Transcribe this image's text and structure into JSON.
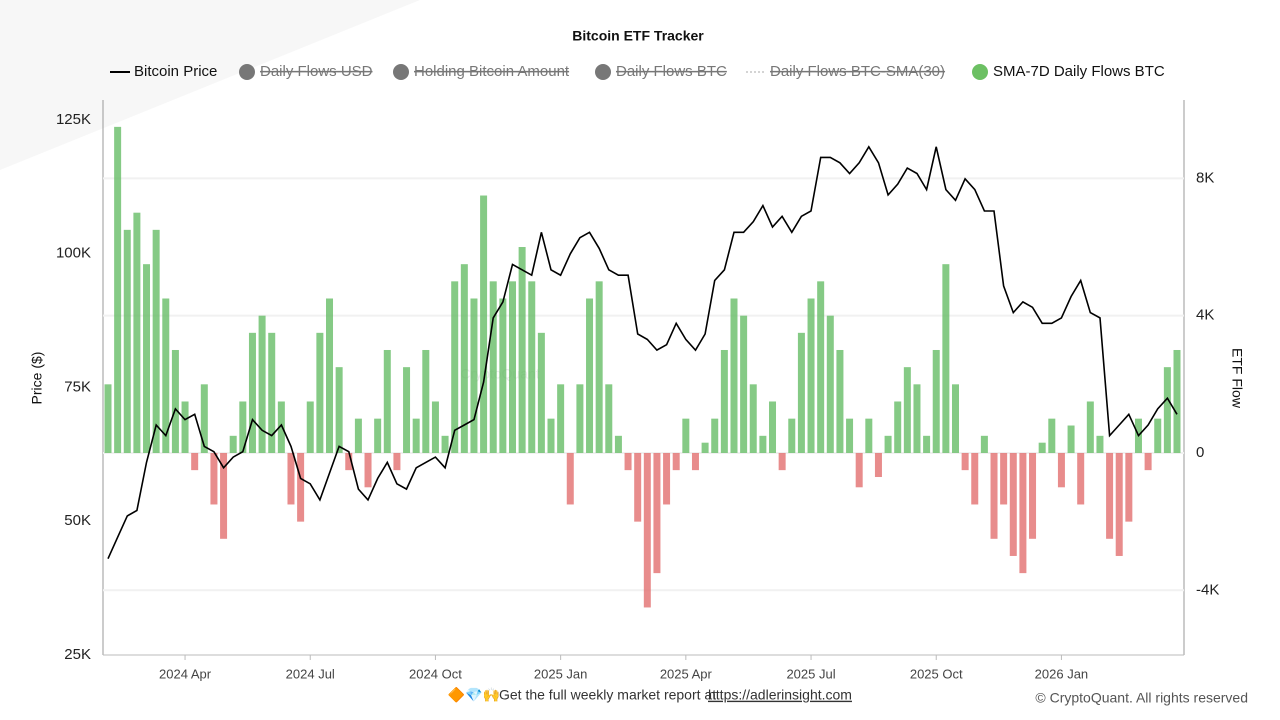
{
  "chart_data": {
    "type": "bar-line",
    "title": "Bitcoin ETF Tracker",
    "y_label": "Price ($)",
    "y2_label": "ETF Flow",
    "ylim": [
      25000,
      125000
    ],
    "yticks": [
      {
        "value": 25000,
        "label": "25K"
      },
      {
        "value": 50000,
        "label": "50K"
      },
      {
        "value": 75000,
        "label": "75K"
      },
      {
        "value": 100000,
        "label": "100K"
      },
      {
        "value": 125000,
        "label": "125K"
      }
    ],
    "y2lim": [
      -5885,
      9700
    ],
    "y2ticks": [
      {
        "value": -4000,
        "label": "-4K"
      },
      0,
      {
        "value": 4000,
        "label": "4K"
      },
      {
        "value": 8000,
        "label": "8K"
      }
    ],
    "grid": true,
    "categories": [
      null,
      null,
      null,
      null,
      null,
      null,
      null,
      null,
      "2024 Apr",
      null,
      null,
      null,
      null,
      null,
      null,
      null,
      null,
      null,
      null,
      null,
      null,
      "2024 Jul",
      null,
      null,
      null,
      null,
      null,
      null,
      null,
      null,
      null,
      null,
      null,
      null,
      "2024 Oct",
      null,
      null,
      null,
      null,
      null,
      null,
      null,
      null,
      null,
      null,
      null,
      null,
      "2025 Jan",
      null,
      null,
      null,
      null,
      null,
      null,
      null,
      null,
      null,
      null,
      null,
      null,
      "2025 Apr",
      null,
      null,
      null,
      null,
      null,
      null,
      null,
      null,
      null,
      null,
      null,
      null,
      "2025 Jul",
      null,
      null,
      null,
      null,
      null,
      null,
      null,
      null,
      null,
      null,
      null,
      null,
      "2025 Oct",
      null,
      null,
      null,
      null,
      null,
      null,
      null,
      null,
      null,
      null,
      null,
      null,
      "2026 Jan",
      null,
      null,
      null,
      null,
      null,
      null,
      null,
      null,
      null,
      null,
      null,
      null
    ],
    "series": [
      {
        "name": "Bitcoin Price",
        "type": "line",
        "color": "#000000",
        "axis": "y",
        "values": [
          43000,
          47000,
          51000,
          52000,
          61000,
          68000,
          66000,
          71000,
          69000,
          70000,
          64000,
          63000,
          60000,
          62000,
          63000,
          69000,
          67000,
          66000,
          68000,
          64000,
          58000,
          57000,
          54000,
          59000,
          64000,
          63000,
          56000,
          54000,
          58000,
          61000,
          57000,
          56000,
          60000,
          61000,
          62000,
          60000,
          67000,
          68000,
          69000,
          76000,
          88000,
          91000,
          98000,
          97000,
          96000,
          104000,
          97000,
          96000,
          100000,
          103000,
          104000,
          101000,
          97000,
          96000,
          96000,
          85000,
          84000,
          82000,
          83000,
          87000,
          84000,
          82000,
          85000,
          95000,
          97000,
          104000,
          104000,
          106000,
          109000,
          105000,
          107000,
          104000,
          107000,
          108000,
          118000,
          118000,
          117000,
          115000,
          117000,
          120000,
          117000,
          111000,
          113000,
          116000,
          115000,
          112000,
          120000,
          112000,
          110000,
          114000,
          112000,
          108000,
          108000,
          94000,
          89000,
          91000,
          90000,
          87000,
          87000,
          88000,
          92000,
          95000,
          89000,
          88000,
          66000,
          68000,
          70000,
          66000,
          68000,
          71000,
          73000,
          70000
        ]
      },
      {
        "name": "SMA-7D Daily Flows BTC",
        "type": "bar",
        "color": "#5cb85c",
        "negative_color": "#e06666",
        "axis": "y2",
        "values": [
          2000,
          9500,
          6500,
          7000,
          5500,
          6500,
          4500,
          3000,
          1500,
          -500,
          2000,
          -1500,
          -2500,
          500,
          1500,
          3500,
          4000,
          3500,
          1500,
          -1500,
          -2000,
          1500,
          3500,
          4500,
          2500,
          -500,
          1000,
          -1000,
          1000,
          3000,
          -500,
          2500,
          1000,
          3000,
          1500,
          500,
          5000,
          5500,
          4500,
          7500,
          5000,
          4500,
          5000,
          6000,
          5000,
          3500,
          1000,
          2000,
          -1500,
          2000,
          4500,
          5000,
          2000,
          500,
          -500,
          -2000,
          -4500,
          -3500,
          -1500,
          -500,
          1000,
          -500,
          300,
          1000,
          3000,
          4500,
          4000,
          2000,
          500,
          1500,
          -500,
          1000,
          3500,
          4500,
          5000,
          4000,
          3000,
          1000,
          -1000,
          1000,
          -700,
          500,
          1500,
          2500,
          2000,
          500,
          3000,
          5500,
          2000,
          -500,
          -1500,
          500,
          -2500,
          -1500,
          -3000,
          -3500,
          -2500,
          300,
          1000,
          -1000,
          800,
          -1500,
          1500,
          500,
          -2500,
          -3000,
          -2000,
          1000,
          -500,
          1000,
          2500,
          3000
        ]
      }
    ],
    "hidden_series": [
      {
        "name": "Daily Flows USD",
        "color": "#777777",
        "marker": "circle"
      },
      {
        "name": "Holding Bitcoin Amount",
        "color": "#777777",
        "marker": "circle"
      },
      {
        "name": "Daily Flows BTC",
        "color": "#777777",
        "marker": "circle"
      },
      {
        "name": "Daily Flows BTC-SMA(30)",
        "color": "#aaaaaa",
        "marker": "dotted-line"
      }
    ]
  },
  "watermark": "CryptoQuant",
  "footer": {
    "emoji": "🔶💎🙌",
    "text": "Get the full weekly market report at",
    "link": "https://adlerinsight.com"
  },
  "copyright": "© CryptoQuant. All rights reserved"
}
